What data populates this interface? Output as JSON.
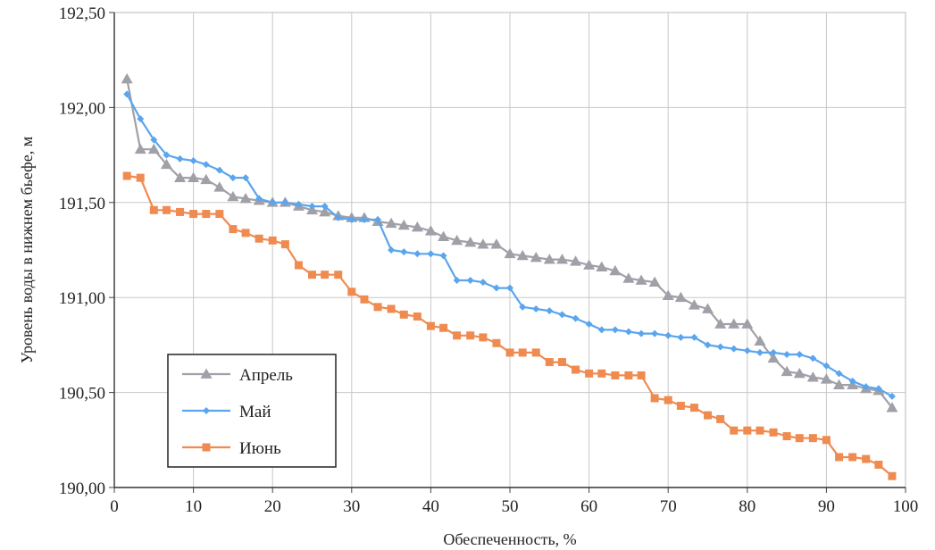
{
  "chart_data": {
    "type": "line",
    "title": "",
    "xlabel": "Обеспеченность, %",
    "ylabel": "Уровень воды в нижнем бьефе, м",
    "xlim": [
      0,
      100
    ],
    "ylim": [
      190.0,
      192.5
    ],
    "x_ticks": [
      0,
      10,
      20,
      30,
      40,
      50,
      60,
      70,
      80,
      90,
      100
    ],
    "y_ticks": [
      190.0,
      190.5,
      191.0,
      191.5,
      192.0,
      192.5
    ],
    "x_tick_labels": [
      "0",
      "10",
      "20",
      "30",
      "40",
      "50",
      "60",
      "70",
      "80",
      "90",
      "100"
    ],
    "y_tick_labels": [
      "190,00",
      "190,50",
      "191,00",
      "191,50",
      "192,00",
      "192,50"
    ],
    "grid": true,
    "legend_position": "lower-left",
    "series": [
      {
        "name": "Апрель",
        "color": "#a0a0a8",
        "marker": "triangle",
        "x": [
          1.6,
          3.3,
          5.0,
          6.6,
          8.3,
          10.0,
          11.6,
          13.3,
          15.0,
          16.6,
          18.3,
          20.0,
          21.6,
          23.3,
          25.0,
          26.6,
          28.3,
          30.0,
          31.6,
          33.3,
          35.0,
          36.6,
          38.3,
          40.0,
          41.6,
          43.3,
          45.0,
          46.6,
          48.3,
          50.0,
          51.6,
          53.3,
          55.0,
          56.6,
          58.3,
          60.0,
          61.6,
          63.3,
          65.0,
          66.6,
          68.3,
          70.0,
          71.6,
          73.3,
          75.0,
          76.6,
          78.3,
          80.0,
          81.6,
          83.3,
          85.0,
          86.6,
          88.3,
          90.0,
          91.6,
          93.3,
          95.0,
          96.6,
          98.3
        ],
        "y": [
          192.15,
          191.78,
          191.78,
          191.7,
          191.63,
          191.63,
          191.62,
          191.58,
          191.53,
          191.52,
          191.51,
          191.5,
          191.5,
          191.48,
          191.46,
          191.45,
          191.43,
          191.42,
          191.42,
          191.4,
          191.39,
          191.38,
          191.37,
          191.35,
          191.32,
          191.3,
          191.29,
          191.28,
          191.28,
          191.23,
          191.22,
          191.21,
          191.2,
          191.2,
          191.19,
          191.17,
          191.16,
          191.14,
          191.1,
          191.09,
          191.08,
          191.01,
          191.0,
          190.96,
          190.94,
          190.86,
          190.86,
          190.86,
          190.77,
          190.68,
          190.61,
          190.6,
          190.58,
          190.57,
          190.54,
          190.54,
          190.52,
          190.51,
          190.42
        ]
      },
      {
        "name": "Май",
        "color": "#5aa5ee",
        "marker": "diamond",
        "x": [
          1.6,
          3.3,
          5.0,
          6.6,
          8.3,
          10.0,
          11.6,
          13.3,
          15.0,
          16.6,
          18.3,
          20.0,
          21.6,
          23.3,
          25.0,
          26.6,
          28.3,
          30.0,
          31.6,
          33.3,
          35.0,
          36.6,
          38.3,
          40.0,
          41.6,
          43.3,
          45.0,
          46.6,
          48.3,
          50.0,
          51.6,
          53.3,
          55.0,
          56.6,
          58.3,
          60.0,
          61.6,
          63.3,
          65.0,
          66.6,
          68.3,
          70.0,
          71.6,
          73.3,
          75.0,
          76.6,
          78.3,
          80.0,
          81.6,
          83.3,
          85.0,
          86.6,
          88.3,
          90.0,
          91.6,
          93.3,
          95.0,
          96.6,
          98.3
        ],
        "y": [
          192.07,
          191.94,
          191.83,
          191.75,
          191.73,
          191.72,
          191.7,
          191.67,
          191.63,
          191.63,
          191.52,
          191.5,
          191.5,
          191.49,
          191.48,
          191.48,
          191.42,
          191.41,
          191.41,
          191.41,
          191.25,
          191.24,
          191.23,
          191.23,
          191.22,
          191.09,
          191.09,
          191.08,
          191.05,
          191.05,
          190.95,
          190.94,
          190.93,
          190.91,
          190.89,
          190.86,
          190.83,
          190.83,
          190.82,
          190.81,
          190.81,
          190.8,
          190.79,
          190.79,
          190.75,
          190.74,
          190.73,
          190.72,
          190.71,
          190.71,
          190.7,
          190.7,
          190.68,
          190.64,
          190.6,
          190.56,
          190.53,
          190.52,
          190.48
        ]
      },
      {
        "name": "Июнь",
        "color": "#ef8b50",
        "marker": "square",
        "x": [
          1.6,
          3.3,
          5.0,
          6.6,
          8.3,
          10.0,
          11.6,
          13.3,
          15.0,
          16.6,
          18.3,
          20.0,
          21.6,
          23.3,
          25.0,
          26.6,
          28.3,
          30.0,
          31.6,
          33.3,
          35.0,
          36.6,
          38.3,
          40.0,
          41.6,
          43.3,
          45.0,
          46.6,
          48.3,
          50.0,
          51.6,
          53.3,
          55.0,
          56.6,
          58.3,
          60.0,
          61.6,
          63.3,
          65.0,
          66.6,
          68.3,
          70.0,
          71.6,
          73.3,
          75.0,
          76.6,
          78.3,
          80.0,
          81.6,
          83.3,
          85.0,
          86.6,
          88.3,
          90.0,
          91.6,
          93.3,
          95.0,
          96.6,
          98.3
        ],
        "y": [
          191.64,
          191.63,
          191.46,
          191.46,
          191.45,
          191.44,
          191.44,
          191.44,
          191.36,
          191.34,
          191.31,
          191.3,
          191.28,
          191.17,
          191.12,
          191.12,
          191.12,
          191.03,
          190.99,
          190.95,
          190.94,
          190.91,
          190.9,
          190.85,
          190.84,
          190.8,
          190.8,
          190.79,
          190.76,
          190.71,
          190.71,
          190.71,
          190.66,
          190.66,
          190.62,
          190.6,
          190.6,
          190.59,
          190.59,
          190.59,
          190.47,
          190.46,
          190.43,
          190.42,
          190.38,
          190.36,
          190.3,
          190.3,
          190.3,
          190.29,
          190.27,
          190.26,
          190.26,
          190.25,
          190.16,
          190.16,
          190.15,
          190.12,
          190.06
        ]
      }
    ]
  }
}
